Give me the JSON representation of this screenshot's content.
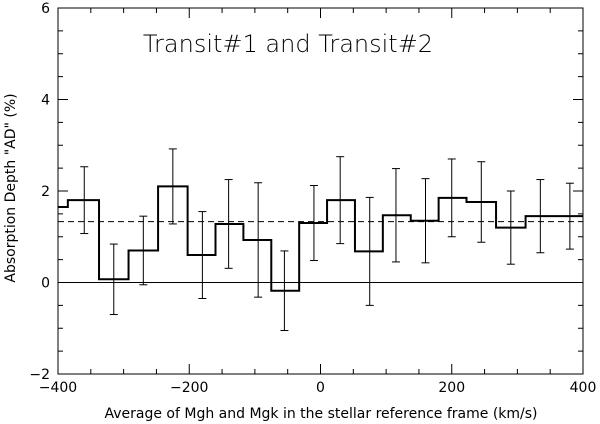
{
  "chart_data": {
    "type": "line",
    "title": "Transit#1 and Transit#2",
    "xlabel": "Average of Mgh and Mgk in the stellar reference frame (km/s)",
    "ylabel": "Absorption Depth \"AD\" (%)",
    "xlim": [
      -400,
      400
    ],
    "ylim": [
      -2,
      6
    ],
    "xticks": [
      -400,
      -200,
      0,
      200,
      400
    ],
    "yticks": [
      -2,
      0,
      2,
      4,
      6
    ],
    "grid": false,
    "legend": "none",
    "series": [
      {
        "style": "step",
        "bin_centers": [
          -410,
          -360,
          -315,
          -270,
          -225,
          -180,
          -140,
          -95,
          -55,
          -10,
          30,
          75,
          115,
          160,
          200,
          245,
          290,
          335,
          380
        ],
        "values": [
          1.65,
          1.8,
          0.07,
          0.7,
          2.1,
          0.6,
          1.28,
          0.93,
          -0.18,
          1.3,
          1.8,
          0.68,
          1.47,
          1.35,
          1.85,
          1.76,
          1.2,
          1.45,
          1.45
        ],
        "errors": [
          0.0,
          0.73,
          0.77,
          0.75,
          0.82,
          0.95,
          0.97,
          1.25,
          0.87,
          0.82,
          0.95,
          1.18,
          1.02,
          0.92,
          0.85,
          0.88,
          0.8,
          0.8,
          0.72
        ]
      },
      {
        "style": "dashed",
        "value": 1.33
      },
      {
        "style": "solid",
        "value": 0
      }
    ]
  }
}
